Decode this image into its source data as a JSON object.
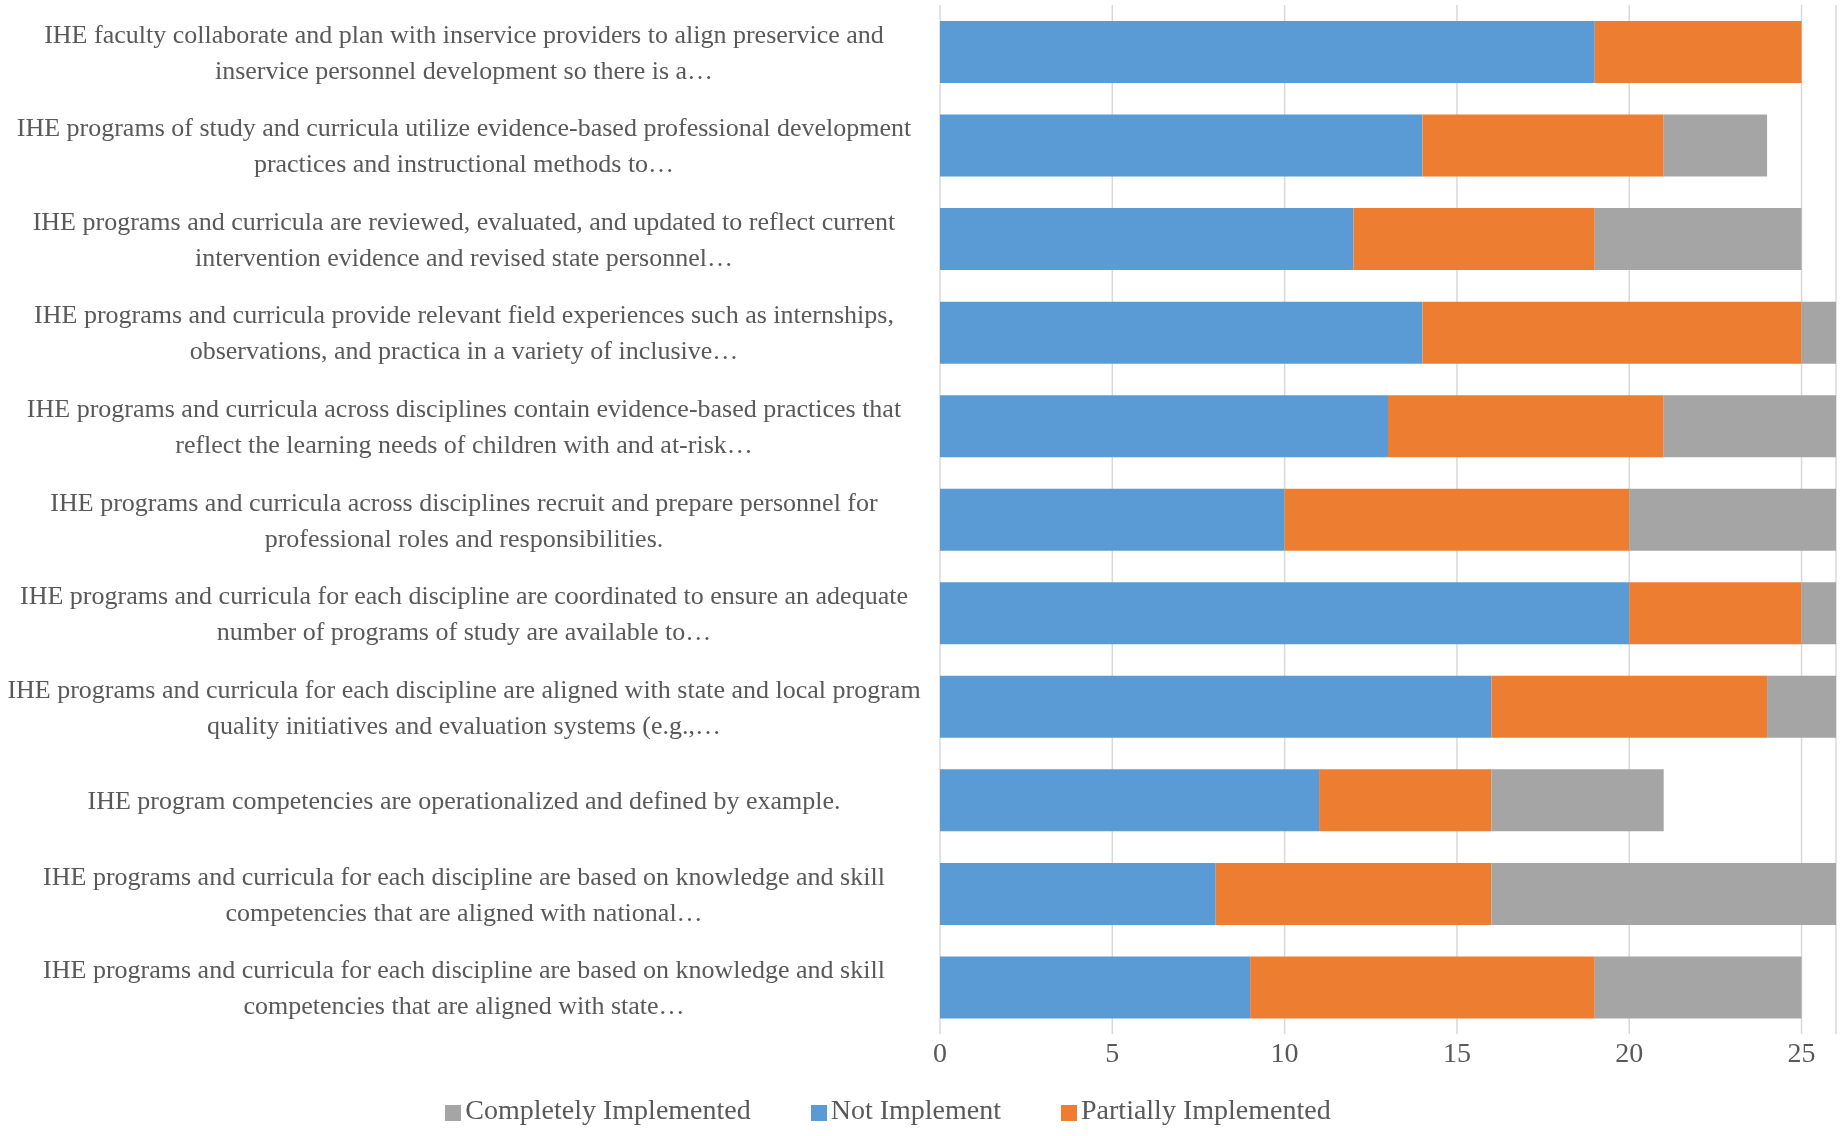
{
  "chart_data": {
    "type": "bar",
    "orientation": "horizontal",
    "stacked": true,
    "categories": [
      "IHE faculty collaborate and plan with inservice providers to align preservice and inservice personnel development so there is a…",
      "IHE programs of study and curricula utilize evidence-based professional development practices and instructional methods to…",
      "IHE programs and curricula are reviewed, evaluated, and updated to reflect current intervention evidence and revised state personnel…",
      "IHE programs and curricula provide relevant field experiences such as internships, observations, and practica in a variety of inclusive…",
      "IHE programs and curricula across disciplines contain evidence-based practices that reflect the learning needs of children with and at-risk…",
      "IHE programs and curricula across disciplines recruit and prepare personnel for professional roles and responsibilities.",
      "IHE programs and curricula for each discipline are coordinated to ensure an adequate number of programs of study are available to…",
      "IHE programs and curricula for each discipline are aligned with state and local program quality initiatives and evaluation systems (e.g.,…",
      "IHE program competencies are operationalized and defined by example.",
      "IHE programs and curricula for each discipline are based on knowledge and skill competencies that are aligned with national…",
      "IHE programs and curricula for each discipline are based on knowledge and skill competencies that are aligned with state…"
    ],
    "series": [
      {
        "name": "Not Implement",
        "color": "#5b9bd5",
        "values": [
          19,
          14,
          12,
          14,
          13,
          10,
          20,
          16,
          11,
          8,
          9
        ]
      },
      {
        "name": "Partially Implemented",
        "color": "#ed7d31",
        "values": [
          6,
          7,
          7,
          11,
          8,
          10,
          5,
          8,
          5,
          8,
          10
        ]
      },
      {
        "name": "Completely Implemented",
        "color": "#a5a5a5",
        "values": [
          0,
          3,
          6,
          1,
          5,
          6,
          1,
          2,
          5,
          10,
          6
        ]
      }
    ],
    "xlim": [
      0,
      26
    ],
    "xticks": [
      0,
      5,
      10,
      15,
      20,
      25
    ],
    "grid": "x",
    "legend": "bottom"
  }
}
